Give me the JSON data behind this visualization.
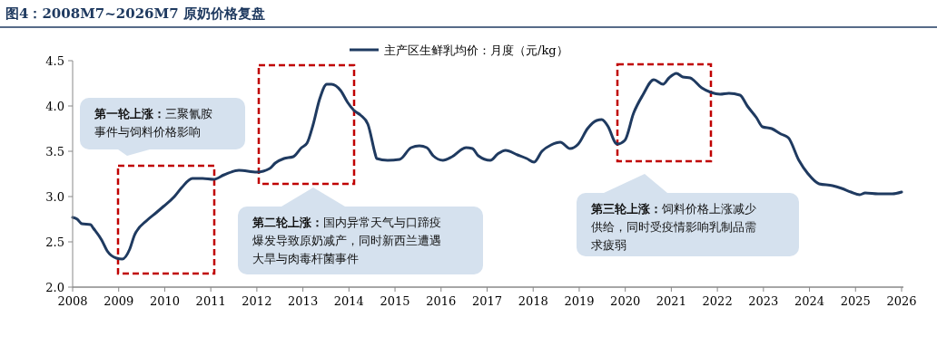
{
  "chart_data": {
    "type": "line",
    "title": "图4：2008M7~2026M7 原奶价格复盘",
    "series": [
      {
        "name": "主产区生鲜乳均价：月度（元/kg）",
        "color": "#1f3a60",
        "x": [
          2008.0,
          2008.1,
          2008.2,
          2008.39,
          2008.45,
          2008.63,
          2008.75,
          2008.95,
          2009.08,
          2009.24,
          2009.34,
          2009.62,
          2009.81,
          2009.97,
          2010.21,
          2010.37,
          2010.6,
          2010.82,
          2011.06,
          2011.29,
          2011.61,
          2012.0,
          2012.28,
          2012.4,
          2012.59,
          2012.79,
          2012.97,
          2013.09,
          2013.22,
          2013.36,
          2013.52,
          2013.62,
          2013.82,
          2013.97,
          2014.11,
          2014.25,
          2014.41,
          2014.57,
          2014.6,
          2014.84,
          2015.1,
          2015.35,
          2015.53,
          2015.69,
          2015.83,
          2016.04,
          2016.24,
          2016.54,
          2016.68,
          2016.81,
          2017.07,
          2017.23,
          2017.4,
          2017.66,
          2017.86,
          2018.02,
          2018.19,
          2018.39,
          2018.59,
          2018.8,
          2018.98,
          2019.18,
          2019.38,
          2019.49,
          2019.63,
          2019.79,
          2019.83,
          2019.99,
          2020.18,
          2020.38,
          2020.62,
          2020.82,
          2020.95,
          2021.11,
          2021.25,
          2021.41,
          2021.66,
          2021.86,
          2022.06,
          2022.25,
          2022.49,
          2022.65,
          2022.85,
          2022.98,
          2023.18,
          2023.38,
          2023.54,
          2023.77,
          2023.97,
          2024.21,
          2024.5,
          2024.7,
          2024.9,
          2025.09,
          2025.21,
          2025.49,
          2025.8,
          2026.0
        ],
        "values": [
          2.77,
          2.75,
          2.7,
          2.69,
          2.65,
          2.52,
          2.4,
          2.32,
          2.31,
          2.42,
          2.57,
          2.74,
          2.82,
          2.89,
          3.0,
          3.1,
          3.2,
          3.2,
          3.19,
          3.24,
          3.29,
          3.27,
          3.31,
          3.37,
          3.42,
          3.44,
          3.54,
          3.59,
          3.79,
          4.07,
          4.24,
          4.24,
          4.17,
          4.04,
          3.95,
          3.9,
          3.8,
          3.47,
          3.42,
          3.4,
          3.41,
          3.54,
          3.56,
          3.54,
          3.45,
          3.4,
          3.44,
          3.54,
          3.53,
          3.45,
          3.4,
          3.47,
          3.51,
          3.46,
          3.42,
          3.38,
          3.5,
          3.57,
          3.6,
          3.53,
          3.58,
          3.75,
          3.84,
          3.85,
          3.77,
          3.59,
          3.58,
          3.62,
          3.92,
          4.12,
          4.29,
          4.24,
          4.31,
          4.36,
          4.32,
          4.31,
          4.2,
          4.15,
          4.13,
          4.14,
          4.12,
          4.0,
          3.87,
          3.77,
          3.75,
          3.69,
          3.65,
          3.4,
          3.25,
          3.14,
          3.12,
          3.09,
          3.05,
          3.02,
          3.04,
          3.03,
          3.03,
          3.05
        ]
      }
    ],
    "xlim": [
      2008,
      2026
    ],
    "xticks": [
      2008,
      2009,
      2010,
      2011,
      2012,
      2013,
      2014,
      2015,
      2016,
      2017,
      2018,
      2019,
      2020,
      2021,
      2022,
      2023,
      2024,
      2025,
      2026
    ],
    "ylim": [
      2,
      4.5
    ],
    "yticks": [
      {
        "value": 2,
        "label": "2.0"
      },
      2.5,
      {
        "value": 3,
        "label": "3.0"
      },
      3.5,
      {
        "value": 4,
        "label": "4.0"
      },
      4.5
    ],
    "annotations": [
      "第一轮上涨：三聚氰胺事件与饲料价格影响",
      "第二轮上涨：国内异常天气与口蹄疫爆发导致原奶减产，同时新西兰遭遇大旱与肉毒杆菌事件",
      "第三轮上涨：饲料价格上涨减少供给，同时受疫情影响乳制品需求疲弱"
    ],
    "legend": "top",
    "grid": false,
    "marker": "none",
    "line_style": "solid"
  }
}
